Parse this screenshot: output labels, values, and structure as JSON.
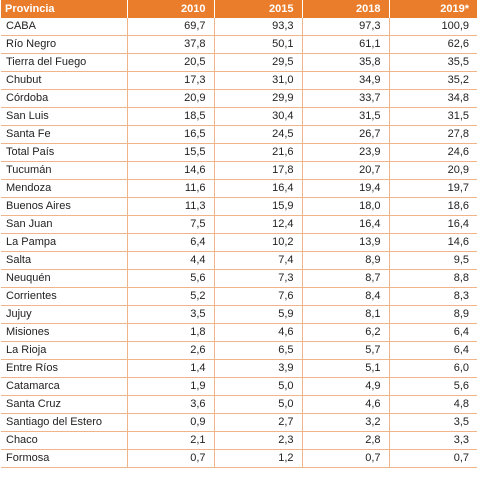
{
  "table": {
    "headers": [
      "Provincia",
      "2010",
      "2015",
      "2018",
      "2019*"
    ],
    "rows": [
      [
        "CABA",
        "69,7",
        "93,3",
        "97,3",
        "100,9"
      ],
      [
        "Río Negro",
        "37,8",
        "50,1",
        "61,1",
        "62,6"
      ],
      [
        "Tierra del Fuego",
        "20,5",
        "29,5",
        "35,8",
        "35,5"
      ],
      [
        "Chubut",
        "17,3",
        "31,0",
        "34,9",
        "35,2"
      ],
      [
        "Córdoba",
        "20,9",
        "29,9",
        "33,7",
        "34,8"
      ],
      [
        "San Luis",
        "18,5",
        "30,4",
        "31,5",
        "31,5"
      ],
      [
        "Santa Fe",
        "16,5",
        "24,5",
        "26,7",
        "27,8"
      ],
      [
        "Total País",
        "15,5",
        "21,6",
        "23,9",
        "24,6"
      ],
      [
        "Tucumán",
        "14,6",
        "17,8",
        "20,7",
        "20,9"
      ],
      [
        "Mendoza",
        "11,6",
        "16,4",
        "19,4",
        "19,7"
      ],
      [
        "Buenos Aires",
        "11,3",
        "15,9",
        "18,0",
        "18,6"
      ],
      [
        "San Juan",
        "7,5",
        "12,4",
        "16,4",
        "16,4"
      ],
      [
        "La Pampa",
        "6,4",
        "10,2",
        "13,9",
        "14,6"
      ],
      [
        "Salta",
        "4,4",
        "7,4",
        "8,9",
        "9,5"
      ],
      [
        "Neuquén",
        "5,6",
        "7,3",
        "8,7",
        "8,8"
      ],
      [
        "Corrientes",
        "5,2",
        "7,6",
        "8,4",
        "8,3"
      ],
      [
        "Jujuy",
        "3,5",
        "5,9",
        "8,1",
        "8,9"
      ],
      [
        "Misiones",
        "1,8",
        "4,6",
        "6,2",
        "6,4"
      ],
      [
        "La Rioja",
        "2,6",
        "6,5",
        "5,7",
        "6,4"
      ],
      [
        "Entre Ríos",
        "1,4",
        "3,9",
        "5,1",
        "6,0"
      ],
      [
        "Catamarca",
        "1,9",
        "5,0",
        "4,9",
        "5,6"
      ],
      [
        "Santa Cruz",
        "3,6",
        "5,0",
        "4,6",
        "4,8"
      ],
      [
        "Santiago del Estero",
        "0,9",
        "2,7",
        "3,2",
        "3,5"
      ],
      [
        "Chaco",
        "2,1",
        "2,3",
        "2,8",
        "3,3"
      ],
      [
        "Formosa",
        "0,7",
        "1,2",
        "0,7",
        "0,7"
      ]
    ]
  },
  "colors": {
    "header_bg": "#ea7d2b",
    "header_text": "#ffffff",
    "grid_line": "#f0b48a"
  }
}
